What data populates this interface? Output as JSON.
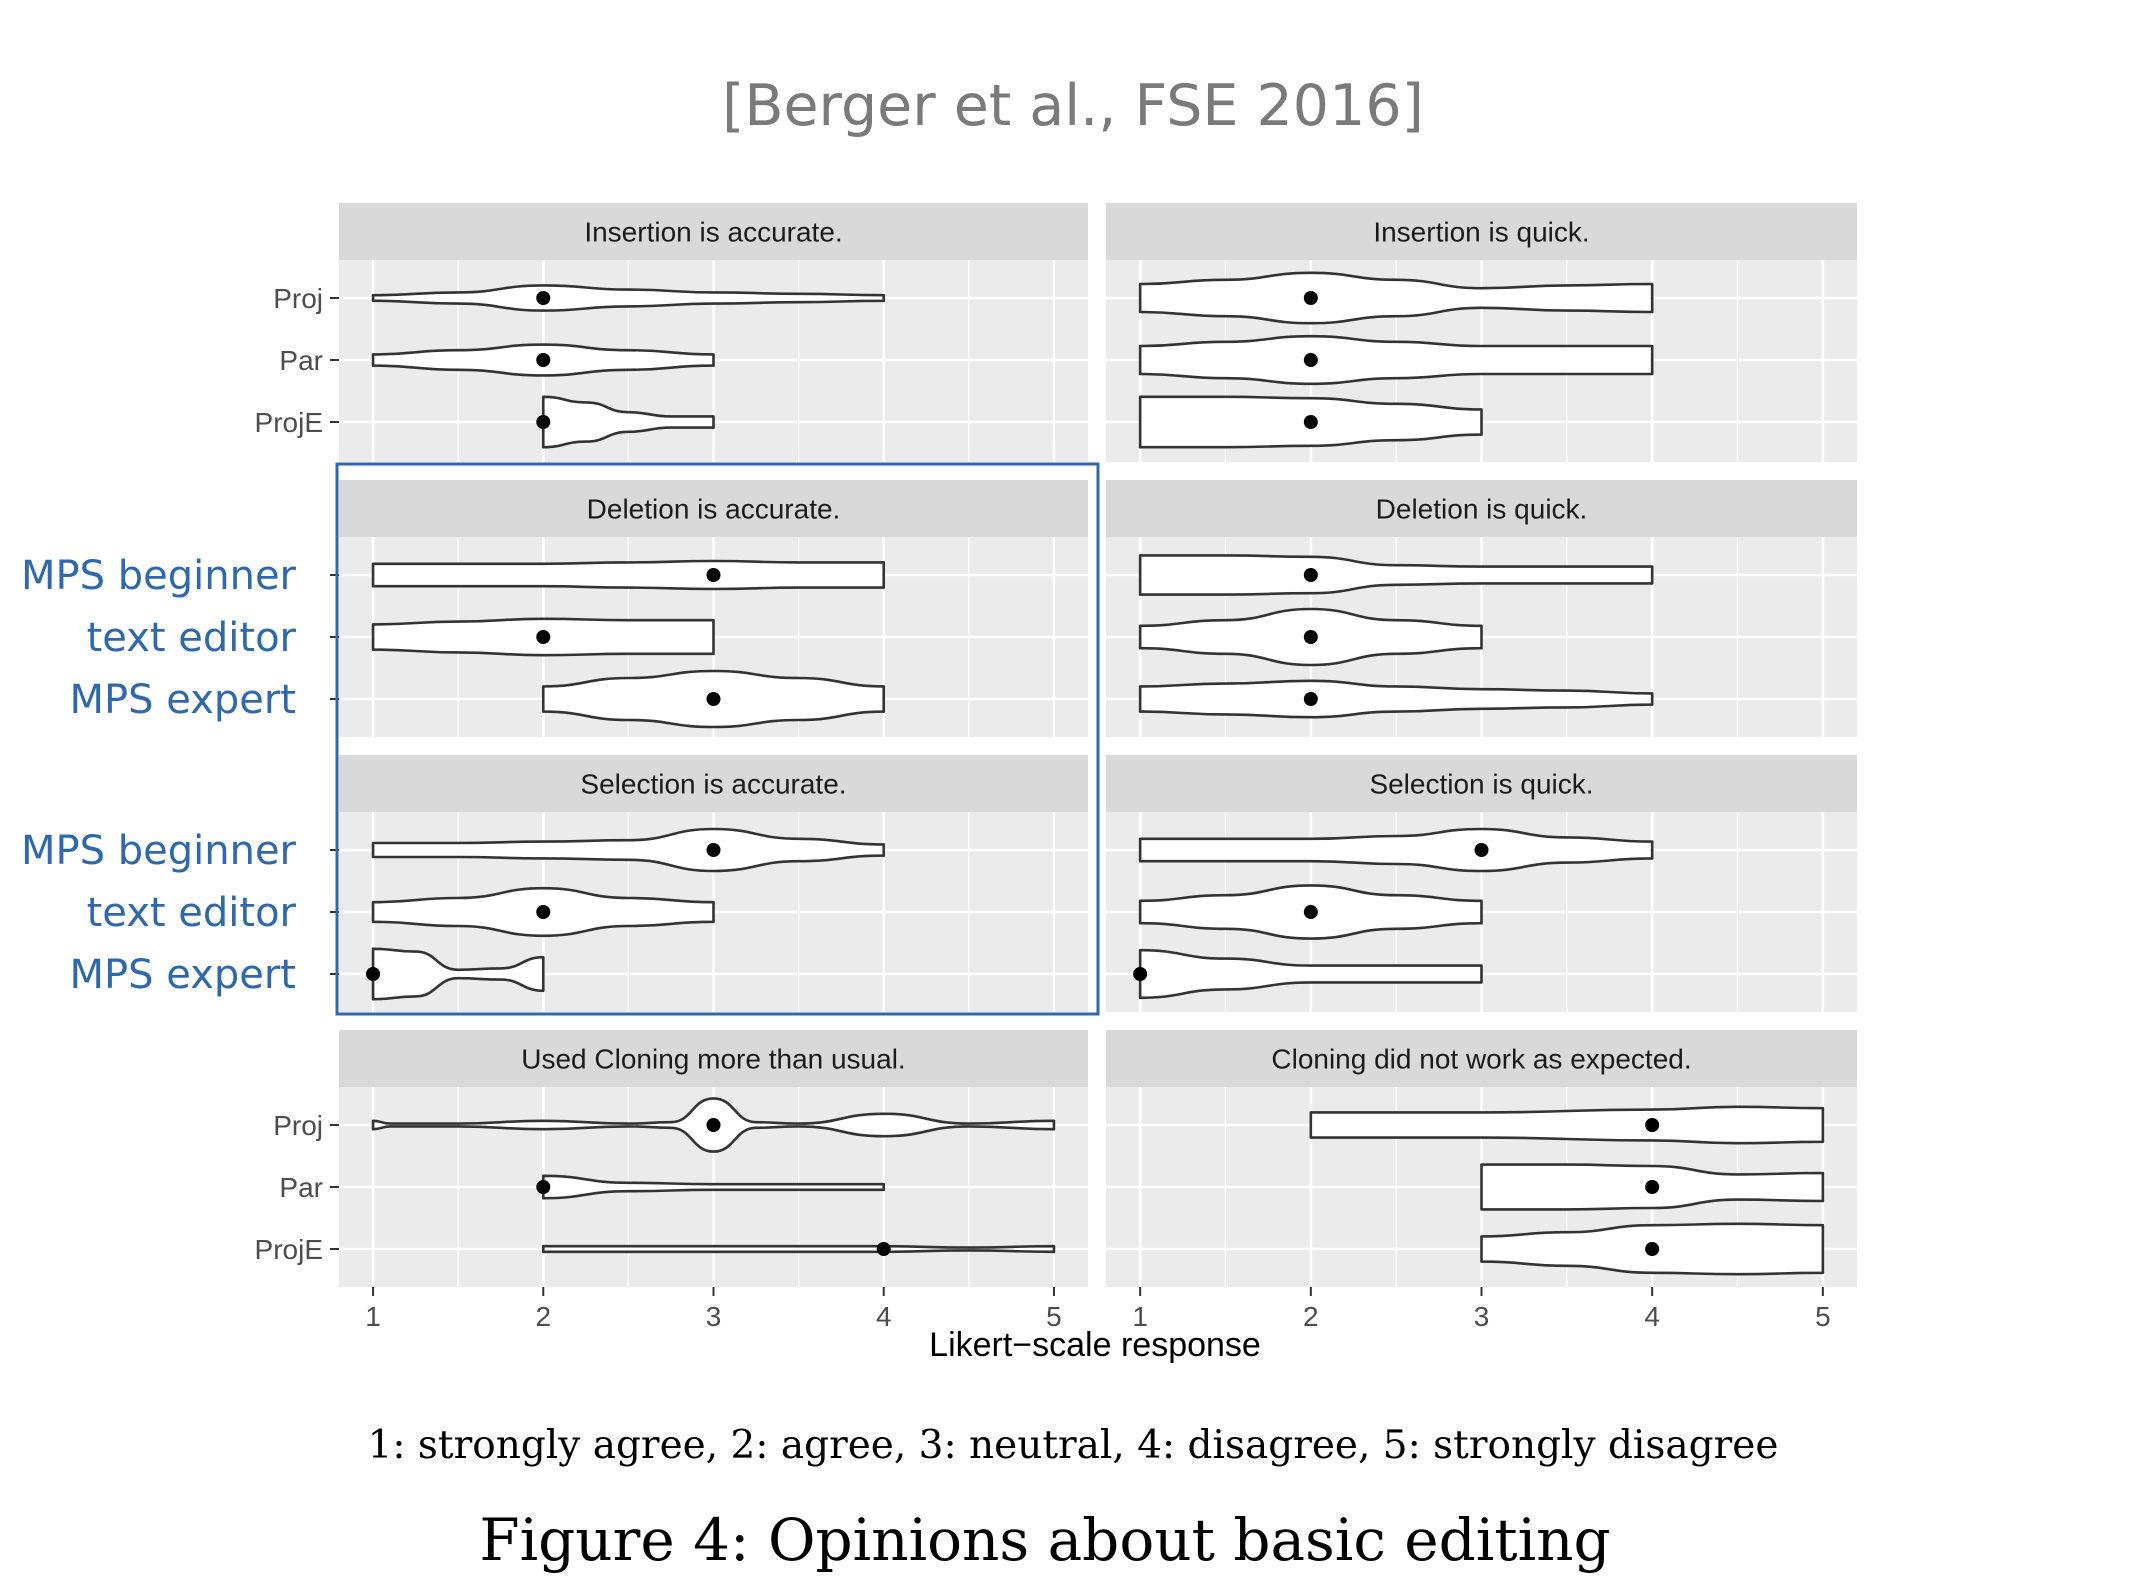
{
  "citation": "[Berger et al., FSE 2016]",
  "legend_text": "1: strongly agree, 2: agree, 3: neutral, 4: disagree, 5: strongly disagree",
  "caption": "Figure 4: Opinions about basic editing",
  "colors": {
    "panel_bg": "#ebebeb",
    "strip_bg": "#d9d9d9",
    "grid": "#ffffff",
    "highlight": "#3068ae",
    "violin_fill": "#ffffff",
    "violin_stroke": "#333333",
    "point": "#000000"
  },
  "chart_data": {
    "type": "violin",
    "xlabel": "Likert−scale response",
    "ylabel": "",
    "xlim": [
      0.8,
      5.2
    ],
    "x_ticks": [
      1,
      2,
      3,
      4,
      5
    ],
    "categories": [
      "Proj",
      "Par",
      "ProjE"
    ],
    "highlight_labels": [
      "MPS beginner",
      "text editor",
      "MPS expert"
    ],
    "highlighted_panels": [
      "Deletion is accurate.",
      "Selection is accurate."
    ],
    "panels": [
      {
        "title": "Insertion is accurate.",
        "series": [
          {
            "name": "Proj",
            "median": 2,
            "profile": [
              [
                1,
                0.1
              ],
              [
                1.5,
                0.2
              ],
              [
                2,
                0.45
              ],
              [
                2.5,
                0.3
              ],
              [
                3,
                0.2
              ],
              [
                3.5,
                0.15
              ],
              [
                4,
                0.1
              ]
            ]
          },
          {
            "name": "Par",
            "median": 2,
            "profile": [
              [
                1,
                0.2
              ],
              [
                1.5,
                0.35
              ],
              [
                2,
                0.55
              ],
              [
                2.5,
                0.35
              ],
              [
                3,
                0.2
              ]
            ]
          },
          {
            "name": "ProjE",
            "median": 2,
            "profile": [
              [
                2,
                0.9
              ],
              [
                2.25,
                0.7
              ],
              [
                2.5,
                0.35
              ],
              [
                2.75,
                0.2
              ],
              [
                3,
                0.2
              ]
            ]
          }
        ]
      },
      {
        "title": "Insertion is quick.",
        "series": [
          {
            "name": "Proj",
            "median": 2,
            "profile": [
              [
                1,
                0.5
              ],
              [
                1.5,
                0.65
              ],
              [
                2,
                0.9
              ],
              [
                2.5,
                0.65
              ],
              [
                3,
                0.35
              ],
              [
                3.5,
                0.45
              ],
              [
                4,
                0.5
              ]
            ]
          },
          {
            "name": "Par",
            "median": 2,
            "profile": [
              [
                1,
                0.5
              ],
              [
                1.5,
                0.65
              ],
              [
                2,
                0.85
              ],
              [
                2.5,
                0.65
              ],
              [
                3,
                0.5
              ],
              [
                3.5,
                0.5
              ],
              [
                4,
                0.5
              ]
            ]
          },
          {
            "name": "ProjE",
            "median": 2,
            "profile": [
              [
                1,
                0.9
              ],
              [
                1.5,
                0.9
              ],
              [
                2,
                0.85
              ],
              [
                2.5,
                0.65
              ],
              [
                3,
                0.45
              ]
            ]
          }
        ]
      },
      {
        "title": "Deletion is accurate.",
        "series": [
          {
            "name": "Proj",
            "median": 3,
            "profile": [
              [
                1,
                0.4
              ],
              [
                1.5,
                0.4
              ],
              [
                2,
                0.4
              ],
              [
                2.5,
                0.45
              ],
              [
                3,
                0.5
              ],
              [
                3.5,
                0.45
              ],
              [
                4,
                0.45
              ]
            ]
          },
          {
            "name": "Par",
            "median": 2,
            "profile": [
              [
                1,
                0.45
              ],
              [
                1.5,
                0.55
              ],
              [
                2,
                0.65
              ],
              [
                2.5,
                0.6
              ],
              [
                3,
                0.6
              ]
            ]
          },
          {
            "name": "ProjE",
            "median": 3,
            "profile": [
              [
                2,
                0.45
              ],
              [
                2.5,
                0.75
              ],
              [
                3,
                1.0
              ],
              [
                3.5,
                0.75
              ],
              [
                4,
                0.45
              ]
            ]
          }
        ]
      },
      {
        "title": "Deletion is quick.",
        "series": [
          {
            "name": "Proj",
            "median": 2,
            "profile": [
              [
                1,
                0.7
              ],
              [
                1.5,
                0.7
              ],
              [
                2,
                0.65
              ],
              [
                2.5,
                0.35
              ],
              [
                3,
                0.3
              ],
              [
                3.5,
                0.3
              ],
              [
                4,
                0.3
              ]
            ]
          },
          {
            "name": "Par",
            "median": 2,
            "profile": [
              [
                1,
                0.4
              ],
              [
                1.5,
                0.6
              ],
              [
                2,
                1.0
              ],
              [
                2.5,
                0.6
              ],
              [
                3,
                0.4
              ]
            ]
          },
          {
            "name": "ProjE",
            "median": 2,
            "profile": [
              [
                1,
                0.45
              ],
              [
                1.5,
                0.55
              ],
              [
                2,
                0.65
              ],
              [
                2.5,
                0.45
              ],
              [
                3,
                0.35
              ],
              [
                3.5,
                0.3
              ],
              [
                4,
                0.2
              ]
            ]
          }
        ]
      },
      {
        "title": "Selection is accurate.",
        "series": [
          {
            "name": "Proj",
            "median": 3,
            "profile": [
              [
                1,
                0.25
              ],
              [
                1.5,
                0.25
              ],
              [
                2,
                0.3
              ],
              [
                2.5,
                0.35
              ],
              [
                3,
                0.75
              ],
              [
                3.5,
                0.4
              ],
              [
                4,
                0.2
              ]
            ]
          },
          {
            "name": "Par",
            "median": 2,
            "profile": [
              [
                1,
                0.35
              ],
              [
                1.5,
                0.5
              ],
              [
                2,
                0.85
              ],
              [
                2.5,
                0.5
              ],
              [
                3,
                0.35
              ]
            ]
          },
          {
            "name": "ProjE",
            "median": 1,
            "profile": [
              [
                1,
                0.9
              ],
              [
                1.25,
                0.8
              ],
              [
                1.5,
                0.15
              ],
              [
                1.75,
                0.2
              ],
              [
                2,
                0.6
              ]
            ]
          }
        ]
      },
      {
        "title": "Selection is quick.",
        "series": [
          {
            "name": "Proj",
            "median": 3,
            "profile": [
              [
                1,
                0.4
              ],
              [
                1.5,
                0.4
              ],
              [
                2,
                0.4
              ],
              [
                2.5,
                0.5
              ],
              [
                3,
                0.75
              ],
              [
                3.5,
                0.45
              ],
              [
                4,
                0.3
              ]
            ]
          },
          {
            "name": "Par",
            "median": 2,
            "profile": [
              [
                1,
                0.4
              ],
              [
                1.5,
                0.6
              ],
              [
                2,
                0.95
              ],
              [
                2.5,
                0.6
              ],
              [
                3,
                0.4
              ]
            ]
          },
          {
            "name": "ProjE",
            "median": 1,
            "profile": [
              [
                1,
                0.85
              ],
              [
                1.5,
                0.55
              ],
              [
                2,
                0.3
              ],
              [
                2.5,
                0.3
              ],
              [
                3,
                0.3
              ]
            ]
          }
        ]
      },
      {
        "title": "Used Cloning more than usual.",
        "series": [
          {
            "name": "Proj",
            "median": 3,
            "profile": [
              [
                1,
                0.15
              ],
              [
                1.1,
                0.05
              ],
              [
                1.5,
                0.05
              ],
              [
                2,
                0.15
              ],
              [
                2.5,
                0.05
              ],
              [
                2.75,
                0.1
              ],
              [
                3,
                0.95
              ],
              [
                3.25,
                0.1
              ],
              [
                3.5,
                0.05
              ],
              [
                4,
                0.4
              ],
              [
                4.5,
                0.05
              ],
              [
                5,
                0.15
              ]
            ]
          },
          {
            "name": "Par",
            "median": 2,
            "profile": [
              [
                2,
                0.4
              ],
              [
                2.5,
                0.15
              ],
              [
                3,
                0.1
              ],
              [
                3.5,
                0.1
              ],
              [
                4,
                0.1
              ]
            ]
          },
          {
            "name": "ProjE",
            "median": 4,
            "profile": [
              [
                2,
                0.1
              ],
              [
                3,
                0.1
              ],
              [
                4,
                0.1
              ],
              [
                4.5,
                0.05
              ],
              [
                5,
                0.1
              ]
            ]
          }
        ]
      },
      {
        "title": "Cloning did not work as expected.",
        "series": [
          {
            "name": "Proj",
            "median": 4,
            "profile": [
              [
                2,
                0.45
              ],
              [
                3,
                0.45
              ],
              [
                4,
                0.55
              ],
              [
                4.5,
                0.65
              ],
              [
                5,
                0.6
              ]
            ]
          },
          {
            "name": "Par",
            "median": 4,
            "profile": [
              [
                3,
                0.8
              ],
              [
                3.5,
                0.8
              ],
              [
                4,
                0.75
              ],
              [
                4.5,
                0.45
              ],
              [
                5,
                0.5
              ]
            ]
          },
          {
            "name": "ProjE",
            "median": 4,
            "profile": [
              [
                3,
                0.45
              ],
              [
                3.5,
                0.6
              ],
              [
                4,
                0.85
              ],
              [
                4.5,
                0.9
              ],
              [
                5,
                0.85
              ]
            ]
          }
        ]
      }
    ]
  }
}
